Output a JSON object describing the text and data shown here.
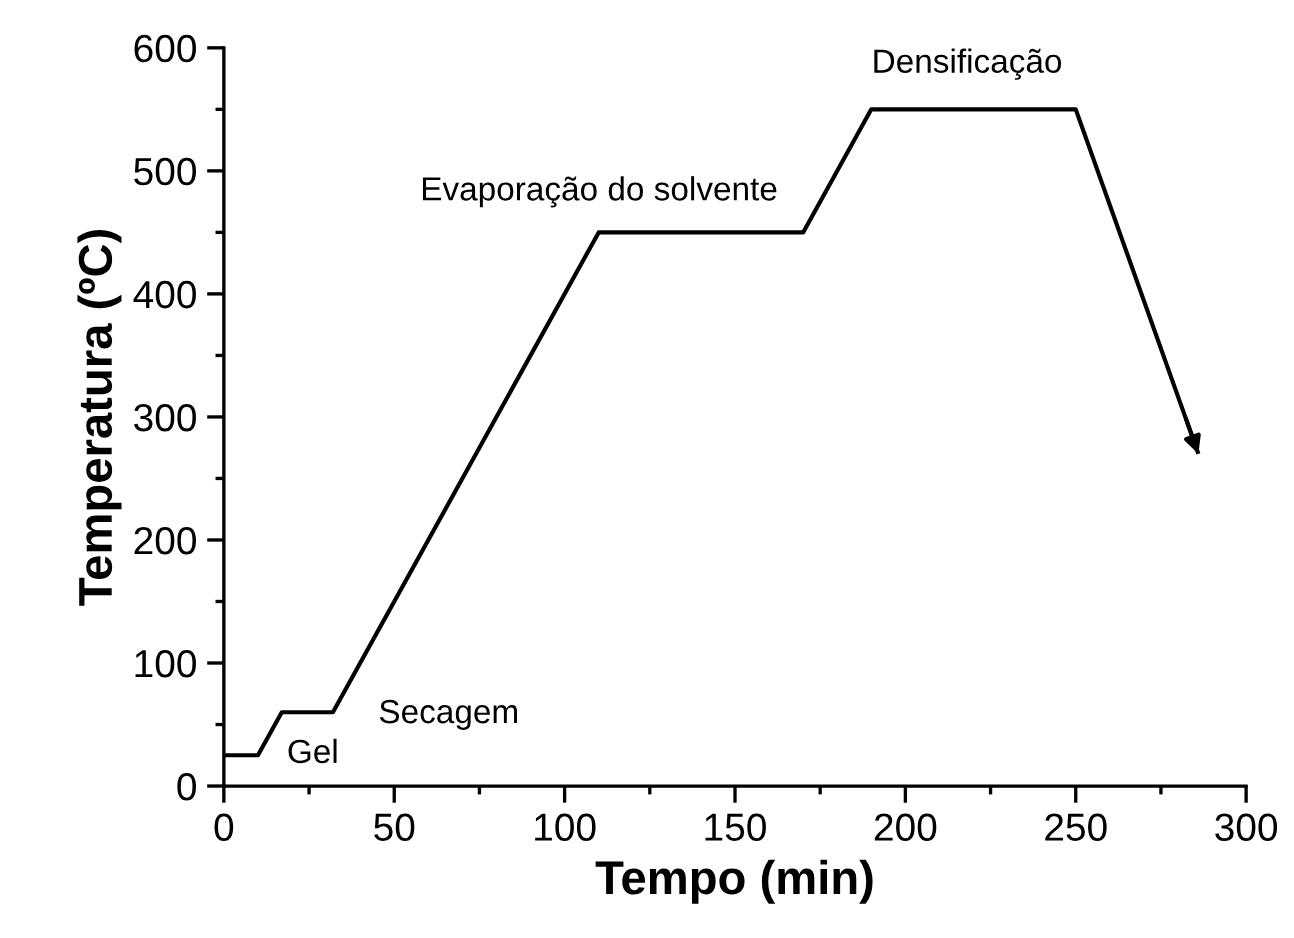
{
  "chart_data": {
    "type": "line",
    "xlabel": "Tempo (min)",
    "ylabel": "Temperatura (ºC)",
    "x": [
      0,
      10,
      17,
      32,
      110,
      170,
      190,
      250,
      286
    ],
    "series": [
      {
        "color": "#000000",
        "values": [
          25,
          25,
          60,
          60,
          450,
          450,
          550,
          550,
          270
        ]
      }
    ],
    "xlim": [
      0,
      300
    ],
    "ylim": [
      0,
      600
    ],
    "xticks": [
      0,
      50,
      100,
      150,
      200,
      250,
      300
    ],
    "yticks": [
      0,
      100,
      200,
      300,
      400,
      500,
      600
    ],
    "grid": false,
    "marker": "none",
    "line_style": "solid",
    "annotations": [
      "Gel",
      "Secagem",
      "Evaporação do solvente",
      "Densificação"
    ]
  }
}
